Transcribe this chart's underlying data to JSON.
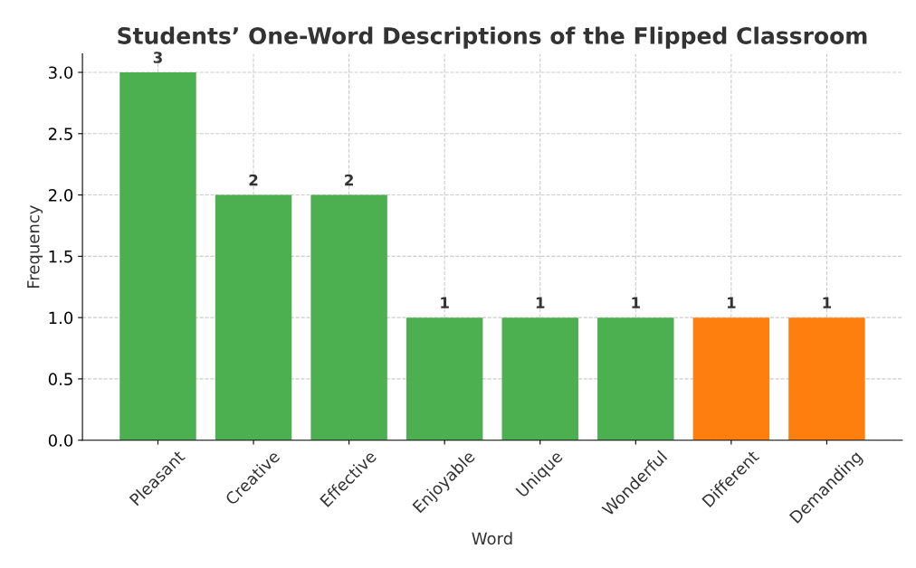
{
  "chart_data": {
    "type": "bar",
    "title": "Students’ One-Word Descriptions of the Flipped Classroom",
    "xlabel": "Word",
    "ylabel": "Frequency",
    "categories": [
      "Pleasant",
      "Creative",
      "Effective",
      "Enjoyable",
      "Unique",
      "Wonderful",
      "Different",
      "Demanding"
    ],
    "values": [
      3,
      2,
      2,
      1,
      1,
      1,
      1,
      1
    ],
    "colors": [
      "#4caf50",
      "#4caf50",
      "#4caf50",
      "#4caf50",
      "#4caf50",
      "#4caf50",
      "#ff7f0e",
      "#ff7f0e"
    ],
    "ylim": [
      0,
      3.15
    ],
    "yticks": [
      {
        "value": 0,
        "label": "0.0"
      },
      {
        "value": 0.5,
        "label": "0.5"
      },
      {
        "value": 1,
        "label": "1.0"
      },
      {
        "value": 1.5,
        "label": "1.5"
      },
      {
        "value": 2,
        "label": "2.0"
      },
      {
        "value": 2.5,
        "label": "2.5"
      },
      {
        "value": 3,
        "label": "3.0"
      }
    ],
    "grid": true,
    "data_labels": true
  }
}
